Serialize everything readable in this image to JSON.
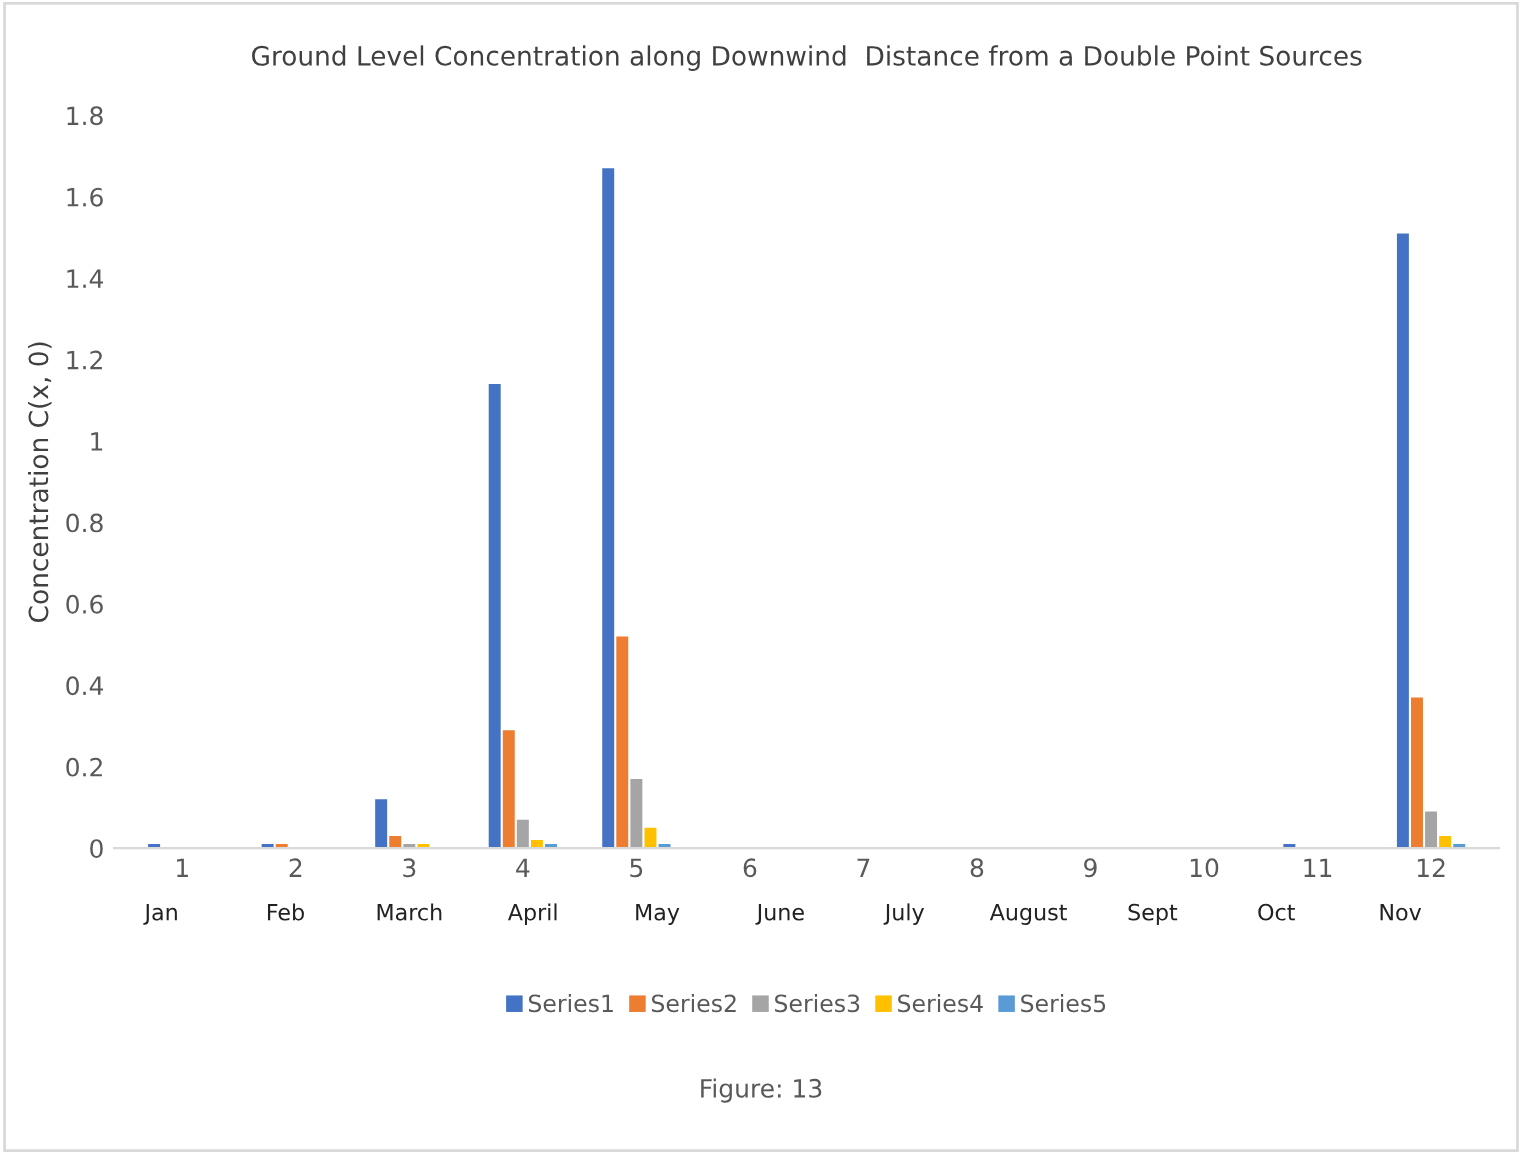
{
  "chart_data": {
    "type": "bar",
    "title": "Ground Level Concentration along Downwind  Distance from a Double Point Sources",
    "ylabel": "Concentration C(x, 0)",
    "categories": [
      "1",
      "2",
      "3",
      "4",
      "5",
      "6",
      "7",
      "8",
      "9",
      "10",
      "11",
      "12"
    ],
    "series": [
      {
        "name": "Series1",
        "color": "#4472c4",
        "values": [
          0.01,
          0.01,
          0.12,
          1.14,
          1.67,
          0,
          0,
          0,
          0,
          0,
          0.01,
          1.51
        ]
      },
      {
        "name": "Series2",
        "color": "#ed7d31",
        "values": [
          0,
          0.01,
          0.03,
          0.29,
          0.52,
          0,
          0,
          0,
          0,
          0,
          0,
          0.37
        ]
      },
      {
        "name": "Series3",
        "color": "#a5a5a5",
        "values": [
          0,
          0,
          0.01,
          0.07,
          0.17,
          0,
          0,
          0,
          0,
          0,
          0,
          0.09
        ]
      },
      {
        "name": "Series4",
        "color": "#ffc000",
        "values": [
          0,
          0,
          0.01,
          0.02,
          0.05,
          0,
          0,
          0,
          0,
          0,
          0,
          0.03
        ]
      },
      {
        "name": "Series5",
        "color": "#5b9bd5",
        "values": [
          0,
          0,
          0,
          0.01,
          0.01,
          0,
          0,
          0,
          0,
          0,
          0,
          0.01
        ]
      }
    ],
    "ylim": [
      0,
      1.8
    ],
    "yticks": [
      0,
      0.2,
      0.4,
      0.6,
      0.8,
      1,
      1.2,
      1.4,
      1.6,
      1.8
    ],
    "grid": false,
    "legend": "bottom",
    "annotations": [
      "Jan",
      "Feb",
      "March",
      "April",
      "May",
      "June",
      "July",
      "August",
      "Sept",
      "Oct",
      "Nov",
      "Figure: 13"
    ]
  }
}
